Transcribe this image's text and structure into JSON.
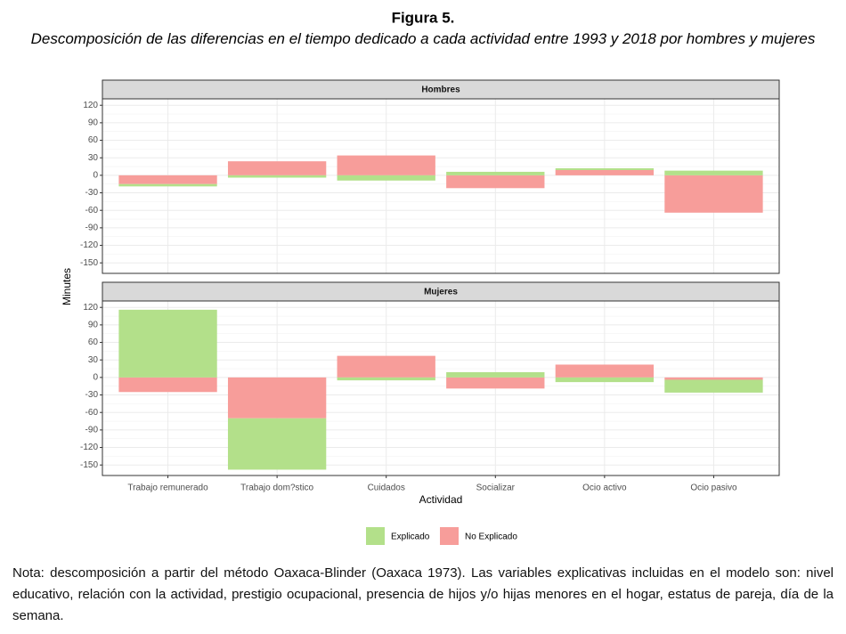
{
  "chart_data": {
    "type": "bar",
    "title": "Figura 5.",
    "subtitle": "Descomposición de las diferencias en el tiempo dedicado a cada actividad entre 1993 y 2018 por hombres y mujeres",
    "x_label": "Actividad",
    "y_label": "Minutes",
    "categories": [
      "Trabajo remunerado",
      "Trabajo dom?stico",
      "Cuidados",
      "Socializar",
      "Ocio activo",
      "Ocio pasivo"
    ],
    "ylim": [
      -168,
      131
    ],
    "yticks": [
      120,
      90,
      60,
      30,
      0,
      -30,
      -60,
      -90,
      -120,
      -150
    ],
    "grid": true,
    "stacked": true,
    "legend": "bottom",
    "panels": [
      {
        "title": "Hombres",
        "series": [
          {
            "name": "Explicado",
            "color": "#b3e08a",
            "values": [
              -4,
              -4,
              -9,
              6,
              3,
              8
            ]
          },
          {
            "name": "No Explicado",
            "color": "#f79d9a",
            "values": [
              -15,
              24,
              34,
              -22,
              9,
              -64
            ]
          }
        ]
      },
      {
        "title": "Mujeres",
        "series": [
          {
            "name": "Explicado",
            "color": "#b3e08a",
            "values": [
              116,
              -88,
              -5,
              9,
              -8,
              -22
            ]
          },
          {
            "name": "No Explicado",
            "color": "#f79d9a",
            "values": [
              -25,
              -70,
              37,
              -19,
              22,
              -4
            ]
          }
        ]
      }
    ],
    "note": "Nota: descomposición a partir del método Oaxaca-Blinder (Oaxaca 1973). Las variables explicativas incluidas en el modelo son: nivel educativo, relación con la actividad, prestigio ocupacional, presencia de hijos y/o hijas menores en el hogar, estatus de pareja, día de la semana."
  }
}
